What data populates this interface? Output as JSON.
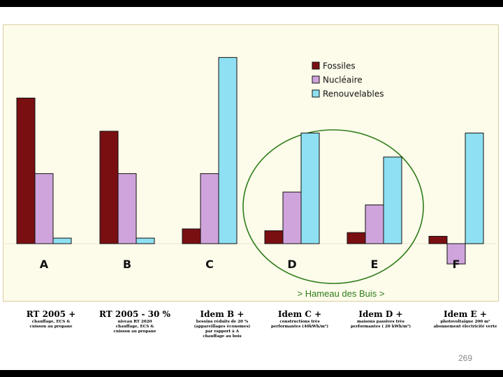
{
  "chart_data": {
    "type": "bar",
    "categories": [
      "A",
      "B",
      "C",
      "D",
      "E",
      "F"
    ],
    "series": [
      {
        "name": "Fossiles",
        "color": "#7a0f12",
        "values": [
          79,
          61,
          8,
          7,
          6,
          4
        ]
      },
      {
        "name": "Nucléaire",
        "color": "#cfa4dc",
        "values": [
          38,
          38,
          38,
          28,
          21,
          -11
        ]
      },
      {
        "name": "Renouvelables",
        "color": "#8ee0f2",
        "values": [
          3,
          3,
          101,
          60,
          47,
          60
        ]
      }
    ],
    "ylim": [
      -12,
      102
    ],
    "grid": false,
    "legend": "top-right",
    "group_annotation": {
      "label": "> Hameau des Buis >",
      "categories": [
        "D",
        "E"
      ],
      "color": "#2e7d1a"
    }
  },
  "captions": [
    {
      "title": "RT 2005 +",
      "detail": "chauffage, ECS &\ncuisson au propane"
    },
    {
      "title": "RT 2005 - 30 %",
      "detail": "niveau RT 2020\nchauffage, ECS &\ncuisson au propane"
    },
    {
      "title": "Idem B +",
      "detail": "besoins réduits de 20 %\n(appareillages économes)\npar rapport à A\nchauffage au bois"
    },
    {
      "title": "Idem C +",
      "detail": "constructions très\nperformantes (40kWh/m²)"
    },
    {
      "title": "Idem D +",
      "detail": "maisons passives très\nperformantes ( 20 kWh/m²)"
    },
    {
      "title": "Idem E +",
      "detail": "photovoltaïque 200 m²\nabonnement électricité verte"
    }
  ],
  "page_number": "269"
}
